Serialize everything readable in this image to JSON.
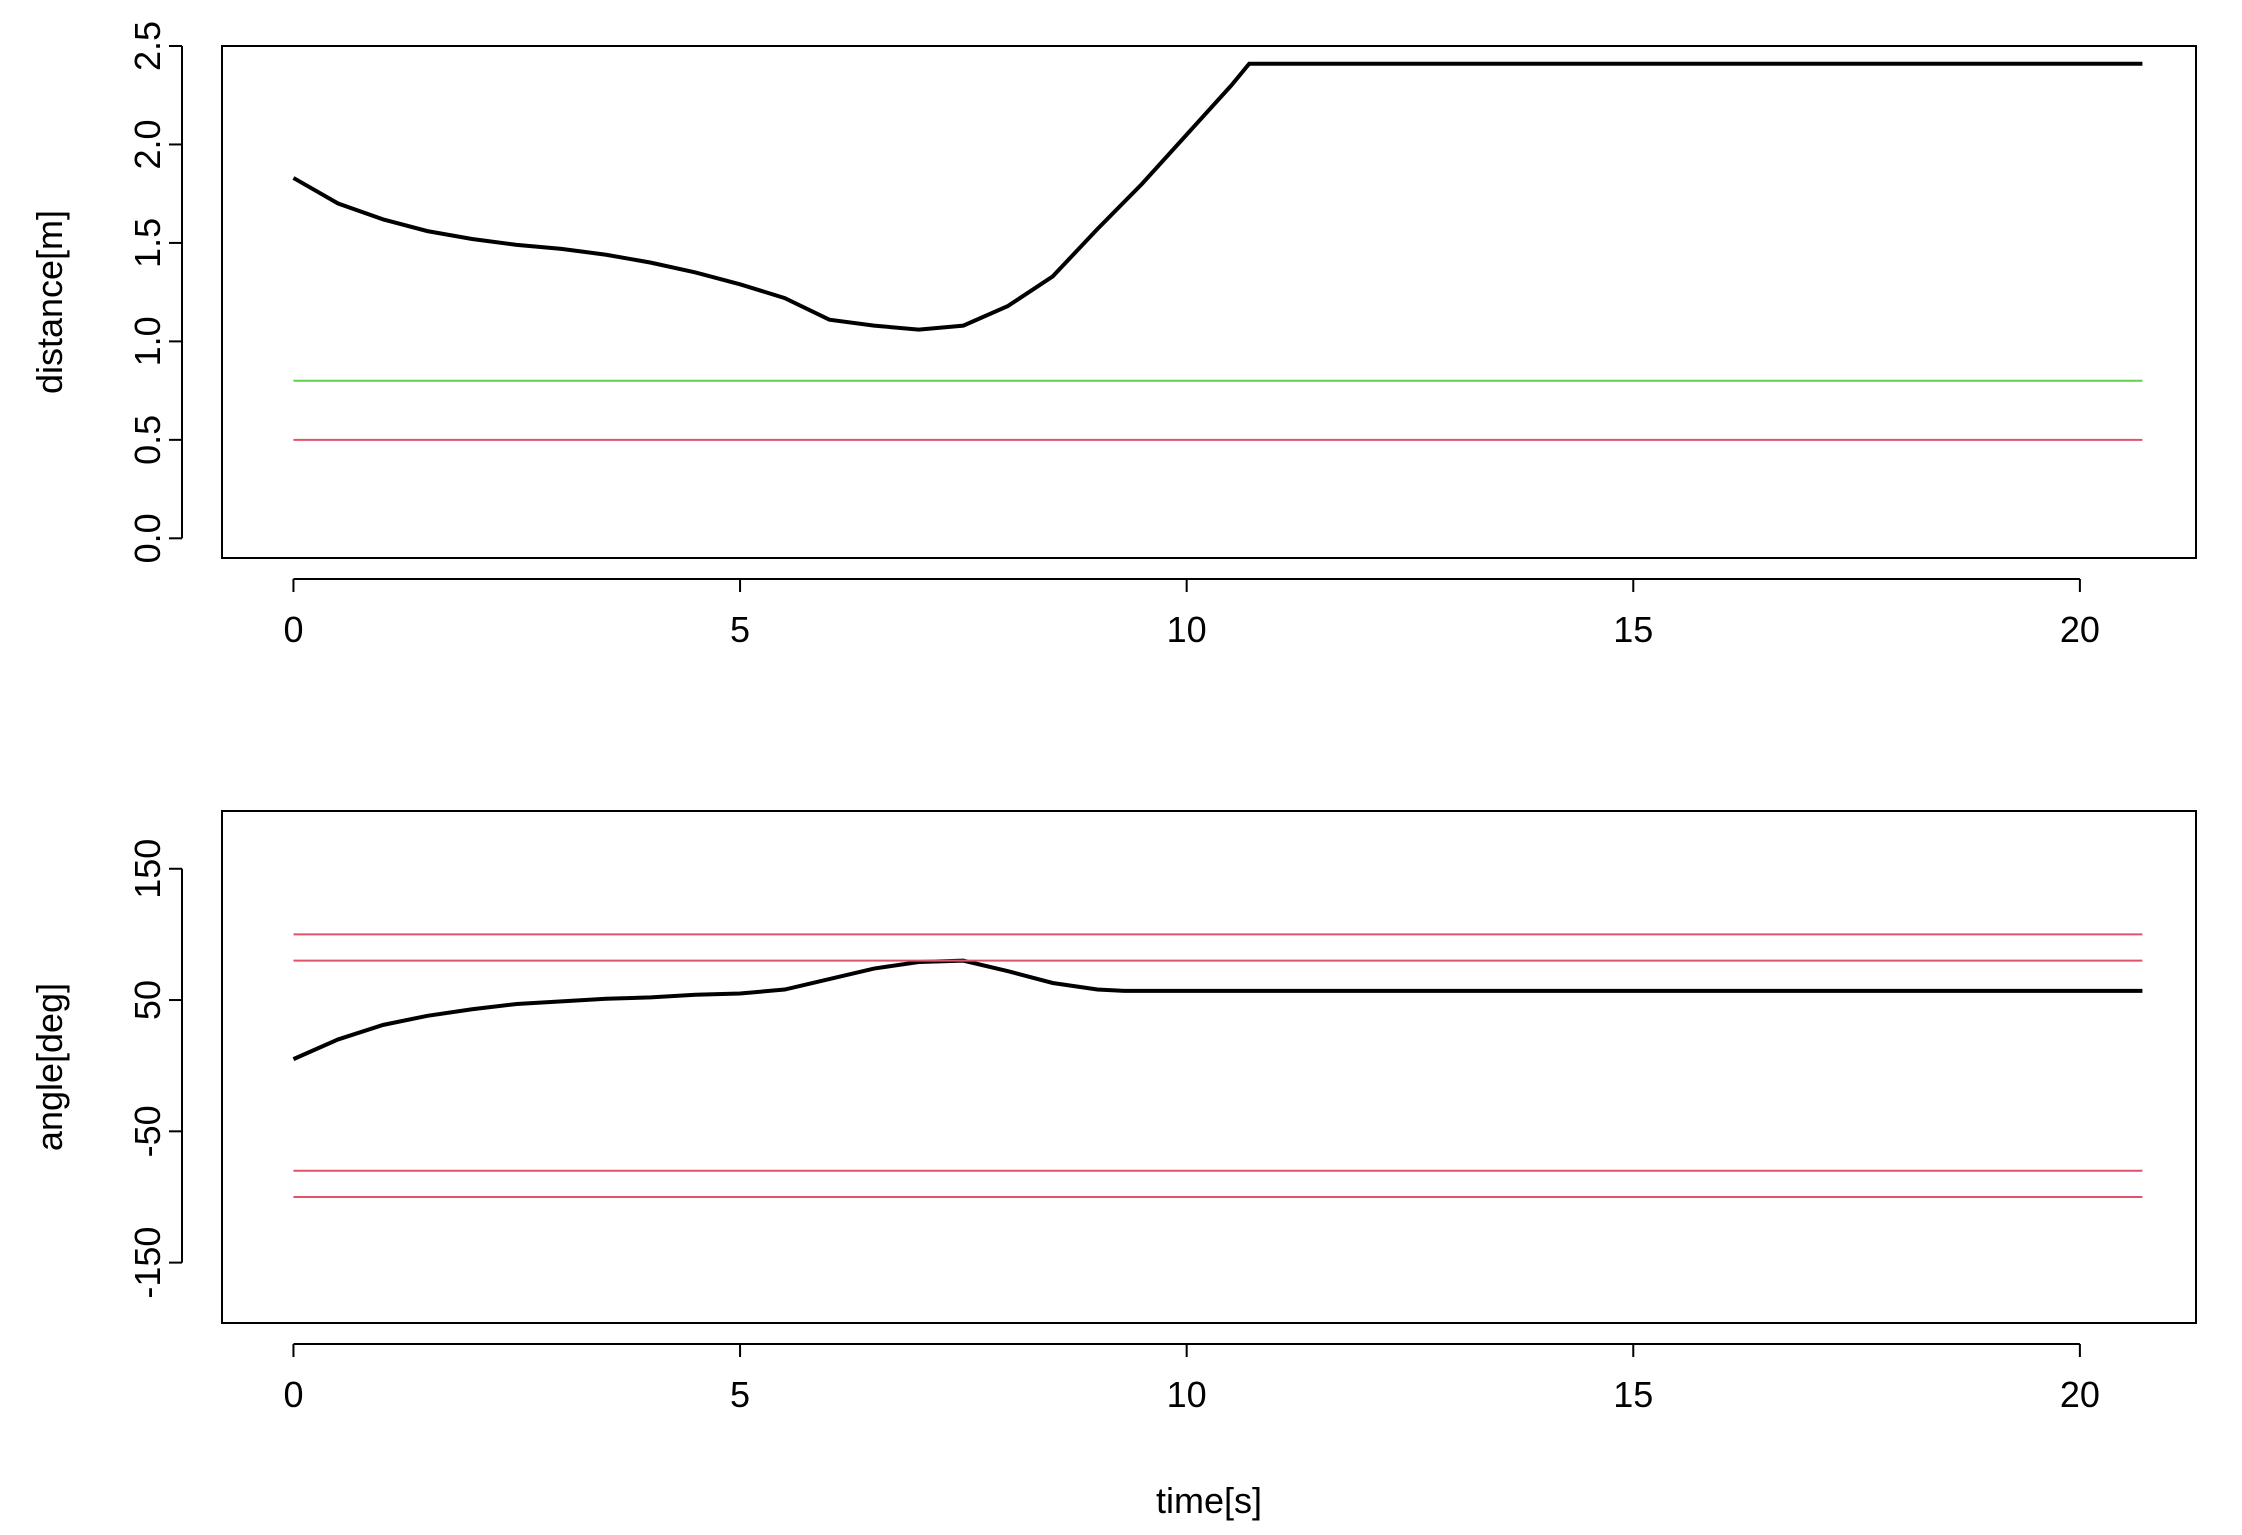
{
  "chart_data": [
    {
      "type": "line",
      "ylabel": "distance[m]",
      "xlim": [
        -0.8,
        21.3
      ],
      "ylim": [
        -0.1,
        2.5
      ],
      "xticks": [
        0,
        5,
        10,
        15,
        20
      ],
      "yticks": [
        {
          "value": 0,
          "label": "0.0"
        },
        {
          "value": 0.5,
          "label": "0.5"
        },
        {
          "value": 1,
          "label": "1.0"
        },
        {
          "value": 1.5,
          "label": "1.5"
        },
        {
          "value": 2,
          "label": "2.0"
        },
        {
          "value": 2.5,
          "label": "2.5"
        }
      ],
      "series": [
        {
          "color": "#000000",
          "x": [
            0,
            0.5,
            1,
            1.5,
            2,
            2.5,
            3,
            3.5,
            4,
            4.5,
            5,
            5.5,
            6,
            6.5,
            7,
            7.5,
            8,
            8.5,
            9,
            9.5,
            10,
            10.5,
            10.7,
            15,
            20.7
          ],
          "values": [
            1.83,
            1.7,
            1.62,
            1.56,
            1.52,
            1.49,
            1.47,
            1.44,
            1.4,
            1.35,
            1.29,
            1.22,
            1.11,
            1.08,
            1.06,
            1.08,
            1.18,
            1.33,
            1.57,
            1.8,
            2.05,
            2.3,
            2.41,
            2.41,
            2.41
          ]
        },
        {
          "color": "#61d04f",
          "x": [
            0,
            20.7
          ],
          "values": [
            0.8,
            0.8
          ]
        },
        {
          "color": "#df536b",
          "x": [
            0,
            20.7
          ],
          "values": [
            0.5,
            0.5
          ]
        }
      ]
    },
    {
      "type": "line",
      "ylabel": "angle[deg]",
      "xlabel": "time[s]",
      "xlim": [
        -0.8,
        21.3
      ],
      "ylim": [
        -196,
        194
      ],
      "xticks": [
        0,
        5,
        10,
        15,
        20
      ],
      "yticks": [
        -150,
        -50,
        50,
        150
      ],
      "series": [
        {
          "color": "#000000",
          "x": [
            0,
            0.5,
            1,
            1.5,
            2,
            2.5,
            3,
            3.5,
            4,
            4.5,
            5,
            5.5,
            6,
            6.5,
            7,
            7.5,
            8,
            8.5,
            9,
            9.3,
            15,
            20.7
          ],
          "values": [
            5,
            20,
            31,
            38,
            43,
            47,
            49,
            51,
            52,
            54,
            55,
            58,
            66,
            74,
            79,
            80,
            72,
            63,
            58,
            57,
            57,
            57
          ]
        },
        {
          "color": "#df536b",
          "x": [
            0,
            20.7
          ],
          "values": [
            100,
            100
          ]
        },
        {
          "color": "#df536b",
          "x": [
            0,
            20.7
          ],
          "values": [
            80,
            80
          ]
        },
        {
          "color": "#df536b",
          "x": [
            0,
            20.7
          ],
          "values": [
            -80,
            -80
          ]
        },
        {
          "color": "#df536b",
          "x": [
            0,
            20.7
          ],
          "values": [
            -100,
            -100
          ]
        }
      ]
    }
  ]
}
